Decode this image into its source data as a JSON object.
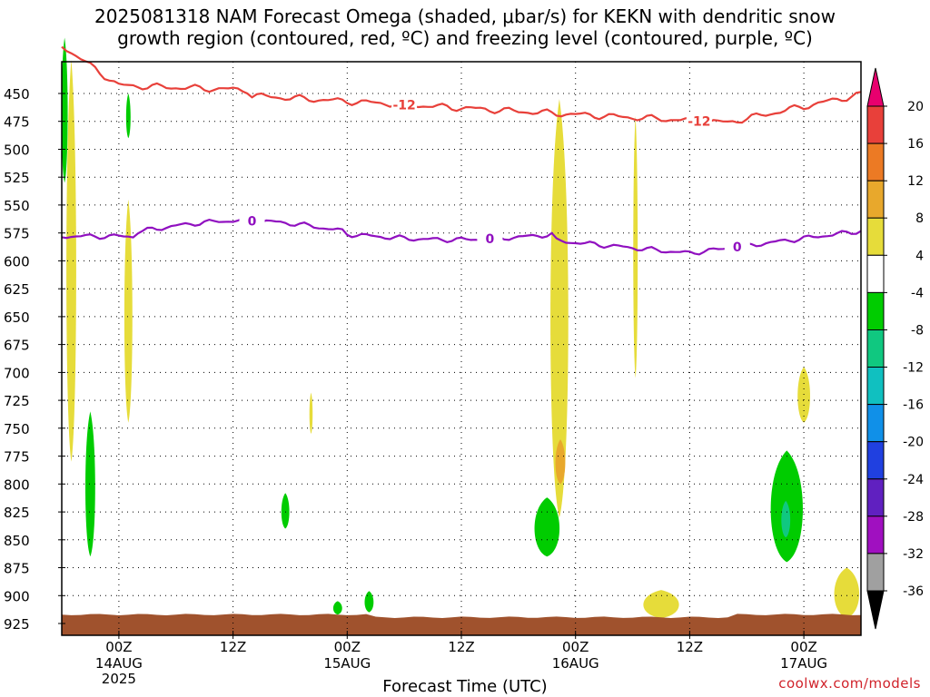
{
  "title": "2025081318 NAM Forecast Omega (shaded, μbar/s) for KEKN with dendritic snow\ngrowth region (contoured, red, ºC) and freezing level (contoured, purple, ºC)",
  "xlabel": "Forecast Time (UTC)",
  "credit": "coolwx.com/models",
  "chart_data": {
    "type": "heatmap",
    "title": "2025081318 NAM Forecast Omega (shaded, μbar/s) for KEKN with dendritic snow growth region (contoured, red, ºC) and freezing level (contoured, purple, ºC)",
    "xlabel": "Forecast Time (UTC)",
    "ylabel": "",
    "x_range_hours": [
      0,
      84
    ],
    "y_range_mb": [
      925,
      400
    ],
    "y_ticks": [
      450,
      475,
      500,
      525,
      550,
      575,
      600,
      625,
      650,
      675,
      700,
      725,
      750,
      775,
      800,
      825,
      850,
      875,
      900,
      925
    ],
    "x_ticks": [
      {
        "hour": 6,
        "label": "00Z",
        "sub": [
          "14AUG",
          "2025"
        ]
      },
      {
        "hour": 18,
        "label": "12Z",
        "sub": []
      },
      {
        "hour": 30,
        "label": "00Z",
        "sub": [
          "15AUG"
        ]
      },
      {
        "hour": 42,
        "label": "12Z",
        "sub": []
      },
      {
        "hour": 54,
        "label": "00Z",
        "sub": [
          "16AUG"
        ]
      },
      {
        "hour": 66,
        "label": "12Z",
        "sub": []
      },
      {
        "hour": 78,
        "label": "00Z",
        "sub": [
          "17AUG"
        ]
      }
    ],
    "grid": true,
    "colorbar": {
      "labels": [
        "20",
        "16",
        "12",
        "8",
        "4",
        "-4",
        "-8",
        "-12",
        "-16",
        "-20",
        "-24",
        "-28",
        "-32",
        "-36"
      ],
      "colors": [
        "#e8006e",
        "#e8403a",
        "#ec7a24",
        "#e8a82c",
        "#e6dc3a",
        "#ffffff",
        "#00cc00",
        "#10c880",
        "#10c0c0",
        "#1090e8",
        "#2040e0",
        "#6020c0",
        "#a010c0",
        "#a0a0a0",
        "#000000"
      ]
    },
    "contours": [
      {
        "name": "-12",
        "color": "#e8403a",
        "label_hours": [
          36,
          67
        ]
      },
      {
        "name": "0",
        "color": "#9010c0",
        "label_hours": [
          20,
          45,
          71
        ]
      }
    ],
    "terrain_color": "#a0522d"
  }
}
